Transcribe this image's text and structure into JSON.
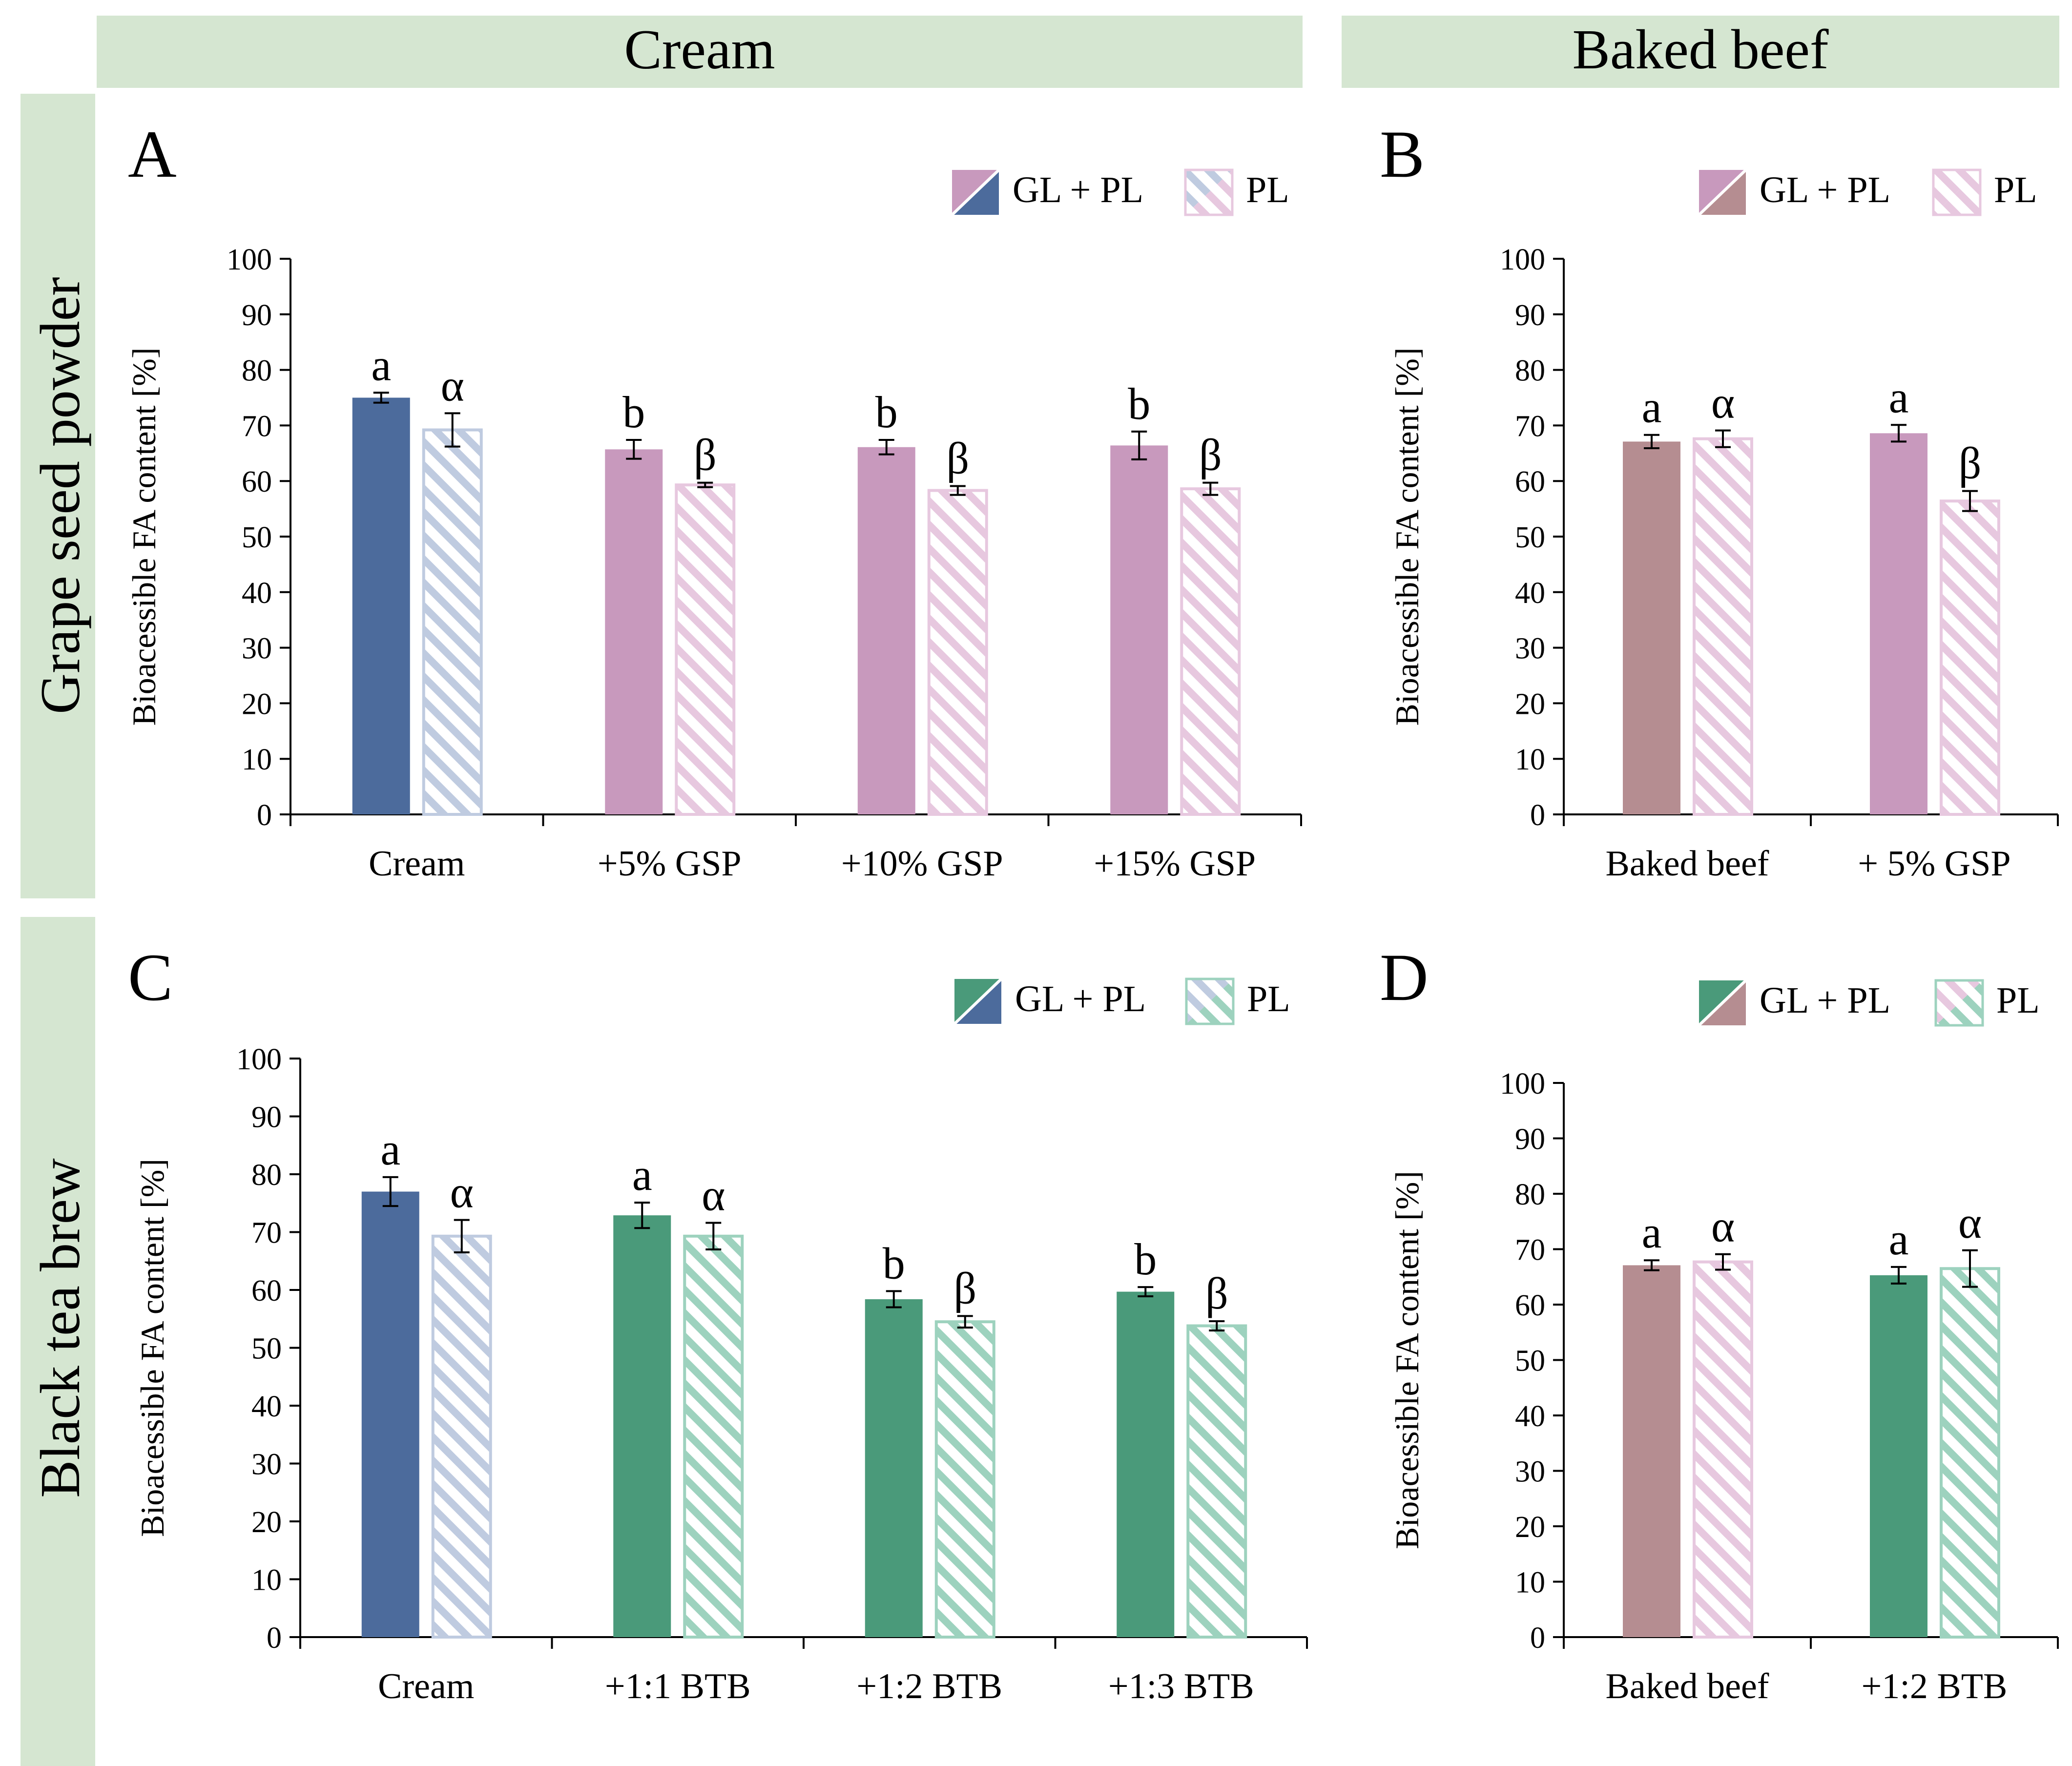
{
  "headers": {
    "column": [
      "Cream",
      "Baked beef"
    ],
    "row": [
      "Grape seed powder",
      "Black tea brew"
    ]
  },
  "colors": {
    "header_bg": "#d5e6d1",
    "blue": "#4c6b9c",
    "blue_light": "#bfcbe0",
    "pink": "#c899bd",
    "pink_light": "#e7c8df",
    "mauve": "#b58d91",
    "green": "#4a9a7a",
    "green_light": "#9dd2be"
  },
  "chart_data": [
    {
      "panel": "A",
      "type": "bar",
      "ylabel": "Bioacessible FA content [%]",
      "ylim": [
        0,
        100
      ],
      "yticks": [
        0,
        10,
        20,
        30,
        40,
        50,
        60,
        70,
        80,
        90,
        100
      ],
      "legend": [
        "GL + PL",
        "PL"
      ],
      "legend_colors": [
        [
          "#4c6b9c",
          "#c899bd"
        ],
        [
          "#bfcbe0",
          "#e7c8df"
        ]
      ],
      "categories": [
        "Cream",
        "+5% GSP",
        "+10% GSP",
        "+15% GSP"
      ],
      "series": [
        {
          "name": "GL + PL",
          "values": [
            75,
            65.7,
            66.1,
            66.4
          ],
          "errors": [
            0.9,
            1.7,
            1.3,
            2.5
          ],
          "labels": [
            "a",
            "b",
            "b",
            "b"
          ],
          "colors": [
            "#4c6b9c",
            "#c899bd",
            "#c899bd",
            "#c899bd"
          ],
          "hatch": false
        },
        {
          "name": "PL",
          "values": [
            69.2,
            59.3,
            58.3,
            58.6
          ],
          "errors": [
            3.0,
            0.4,
            0.8,
            1.1
          ],
          "labels": [
            "α",
            "β",
            "β",
            "β"
          ],
          "colors": [
            "#bfcbe0",
            "#e7c8df",
            "#e7c8df",
            "#e7c8df"
          ],
          "hatch": true
        }
      ]
    },
    {
      "panel": "B",
      "type": "bar",
      "ylabel": "Bioacessible FA content [%]",
      "ylim": [
        0,
        100
      ],
      "yticks": [
        0,
        10,
        20,
        30,
        40,
        50,
        60,
        70,
        80,
        90,
        100
      ],
      "legend": [
        "GL + PL",
        "PL"
      ],
      "legend_colors": [
        [
          "#b58d91",
          "#c899bd"
        ],
        [
          "#e7c8df",
          "#e7c8df"
        ]
      ],
      "categories": [
        "Baked beef",
        "+ 5% GSP"
      ],
      "series": [
        {
          "name": "GL + PL",
          "values": [
            67.1,
            68.6
          ],
          "errors": [
            1.2,
            1.5
          ],
          "labels": [
            "a",
            "a"
          ],
          "colors": [
            "#b58d91",
            "#c899bd"
          ],
          "hatch": false
        },
        {
          "name": "PL",
          "values": [
            67.6,
            56.4
          ],
          "errors": [
            1.5,
            1.8
          ],
          "labels": [
            "α",
            "β"
          ],
          "colors": [
            "#e7c8df",
            "#e7c8df"
          ],
          "hatch": true
        }
      ]
    },
    {
      "panel": "C",
      "type": "bar",
      "ylabel": "Bioacessible FA content [%]",
      "ylim": [
        0,
        100
      ],
      "yticks": [
        0,
        10,
        20,
        30,
        40,
        50,
        60,
        70,
        80,
        90,
        100
      ],
      "legend": [
        "GL + PL",
        "PL"
      ],
      "legend_colors": [
        [
          "#4c6b9c",
          "#4a9a7a"
        ],
        [
          "#bfcbe0",
          "#9dd2be"
        ]
      ],
      "categories": [
        "Cream",
        "+1:1 BTB",
        "+1:2 BTB",
        "+1:3 BTB"
      ],
      "series": [
        {
          "name": "GL + PL",
          "values": [
            77,
            72.9,
            58.4,
            59.7
          ],
          "errors": [
            2.5,
            2.2,
            1.4,
            0.8
          ],
          "labels": [
            "a",
            "a",
            "b",
            "b"
          ],
          "colors": [
            "#4c6b9c",
            "#4a9a7a",
            "#4a9a7a",
            "#4a9a7a"
          ],
          "hatch": false
        },
        {
          "name": "PL",
          "values": [
            69.3,
            69.3,
            54.5,
            53.8
          ],
          "errors": [
            2.8,
            2.3,
            1.0,
            0.8
          ],
          "labels": [
            "α",
            "α",
            "β",
            "β"
          ],
          "colors": [
            "#bfcbe0",
            "#9dd2be",
            "#9dd2be",
            "#9dd2be"
          ],
          "hatch": true
        }
      ]
    },
    {
      "panel": "D",
      "type": "bar",
      "ylabel": "Bioacessible FA content [%]",
      "ylim": [
        0,
        100
      ],
      "yticks": [
        0,
        10,
        20,
        30,
        40,
        50,
        60,
        70,
        80,
        90,
        100
      ],
      "legend": [
        "GL + PL",
        "PL"
      ],
      "legend_colors": [
        [
          "#b58d91",
          "#4a9a7a"
        ],
        [
          "#e7c8df",
          "#9dd2be"
        ]
      ],
      "categories": [
        "Baked beef",
        "+1:2 BTB"
      ],
      "series": [
        {
          "name": "GL + PL",
          "values": [
            67.1,
            65.3
          ],
          "errors": [
            0.9,
            1.5
          ],
          "labels": [
            "a",
            "a"
          ],
          "colors": [
            "#b58d91",
            "#4a9a7a"
          ],
          "hatch": false
        },
        {
          "name": "PL",
          "values": [
            67.7,
            66.5
          ],
          "errors": [
            1.4,
            3.3
          ],
          "labels": [
            "α",
            "α"
          ],
          "colors": [
            "#e7c8df",
            "#9dd2be"
          ],
          "hatch": true
        }
      ]
    }
  ]
}
